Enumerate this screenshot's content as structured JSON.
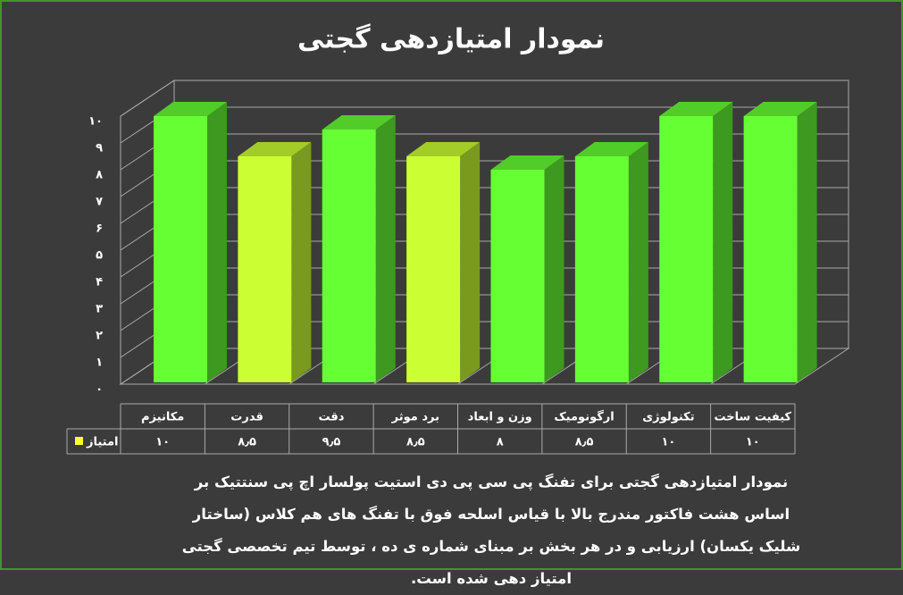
{
  "chart_data": {
    "type": "bar3d",
    "title": "نمودار امتیازدهی گجتی",
    "categories": [
      "مکانیزم",
      "قدرت",
      "دقت",
      "برد موثر",
      "وزن و ابعاد",
      "ارگونومیک",
      "تکنولوژی",
      "کیفیت ساخت"
    ],
    "series": [
      {
        "name": "امتیاز",
        "color": "#ffff33",
        "values": [
          10,
          8.5,
          9.5,
          8.5,
          8,
          8.5,
          10,
          10
        ],
        "value_labels": [
          "۱۰",
          "۸٫۵",
          "۹٫۵",
          "۸٫۵",
          "۸",
          "۸٫۵",
          "۱۰",
          "۱۰"
        ],
        "bar_colors": [
          "#66ff33",
          "#ccff33",
          "#66ff33",
          "#ccff33",
          "#66ff33",
          "#66ff33",
          "#66ff33",
          "#66ff33"
        ]
      }
    ],
    "ylim": [
      0,
      10
    ],
    "yticks": [
      {
        "value": 0,
        "label": "۰"
      },
      {
        "value": 1,
        "label": "۱"
      },
      {
        "value": 2,
        "label": "۲"
      },
      {
        "value": 3,
        "label": "۳"
      },
      {
        "value": 4,
        "label": "۴"
      },
      {
        "value": 5,
        "label": "۵"
      },
      {
        "value": 6,
        "label": "۶"
      },
      {
        "value": 7,
        "label": "۷"
      },
      {
        "value": 8,
        "label": "۸"
      },
      {
        "value": 9,
        "label": "۹"
      },
      {
        "value": 10,
        "label": "۱۰"
      }
    ],
    "grid": true,
    "caption": "نمودار امتیازدهی گجتی برای تفنگ پی سی پی دی استیت پولسار اچ پی سنتتیک بر اساس هشت فاکتور مندرج بالا با قیاس اسلحه فوق با تفنگ های هم کلاس (ساختار شلیک یکسان) ارزیابی و در هر بخش بر مبنای شماره ی ده ، توسط تیم تخصصی گجتی امتیاز دهی شده است."
  }
}
